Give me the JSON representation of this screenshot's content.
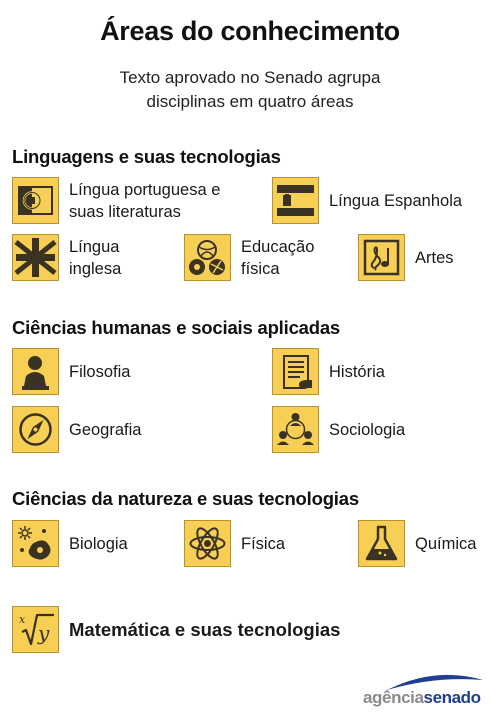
{
  "header": {
    "title": "Áreas do conhecimento",
    "subtitle_line1": "Texto aprovado no Senado agrupa",
    "subtitle_line2": "disciplinas em quatro áreas"
  },
  "sections": {
    "linguagens": {
      "title": "Linguagens e suas tecnologias",
      "items": {
        "portuguesa": {
          "line1": "Língua portuguesa e",
          "line2": "suas literaturas",
          "icon": "portugal-flag-icon"
        },
        "espanhola": {
          "label": "Língua Espanhola",
          "icon": "spain-flag-icon"
        },
        "inglesa": {
          "line1": "Língua",
          "line2": "inglesa",
          "icon": "union-jack-icon"
        },
        "educacao": {
          "line1": "Educação",
          "line2": "física",
          "icon": "sports-balls-icon"
        },
        "artes": {
          "label": "Artes",
          "icon": "music-note-icon"
        }
      }
    },
    "humanas": {
      "title": "Ciências humanas e sociais aplicadas",
      "items": {
        "filosofia": {
          "label": "Filosofia",
          "icon": "philosopher-bust-icon"
        },
        "historia": {
          "label": "História",
          "icon": "scroll-document-icon"
        },
        "geografia": {
          "label": "Geografia",
          "icon": "compass-icon"
        },
        "sociologia": {
          "label": "Sociologia",
          "icon": "people-network-icon"
        }
      }
    },
    "natureza": {
      "title": "Ciências da natureza e suas tecnologias",
      "items": {
        "biologia": {
          "label": "Biologia",
          "icon": "cell-microbe-icon"
        },
        "fisica": {
          "label": "Física",
          "icon": "atom-icon"
        },
        "quimica": {
          "label": "Química",
          "icon": "flask-icon"
        }
      }
    },
    "matematica": {
      "title": "Matemática e suas tecnologias",
      "icon": "math-root-icon"
    }
  },
  "logo": {
    "part1": "agência",
    "part2": "senado"
  },
  "colors": {
    "tile": "#f7cf55",
    "tile_border": "#b8922a",
    "icon_dark": "#3a3222",
    "logo_blue": "#1f3f8f"
  }
}
